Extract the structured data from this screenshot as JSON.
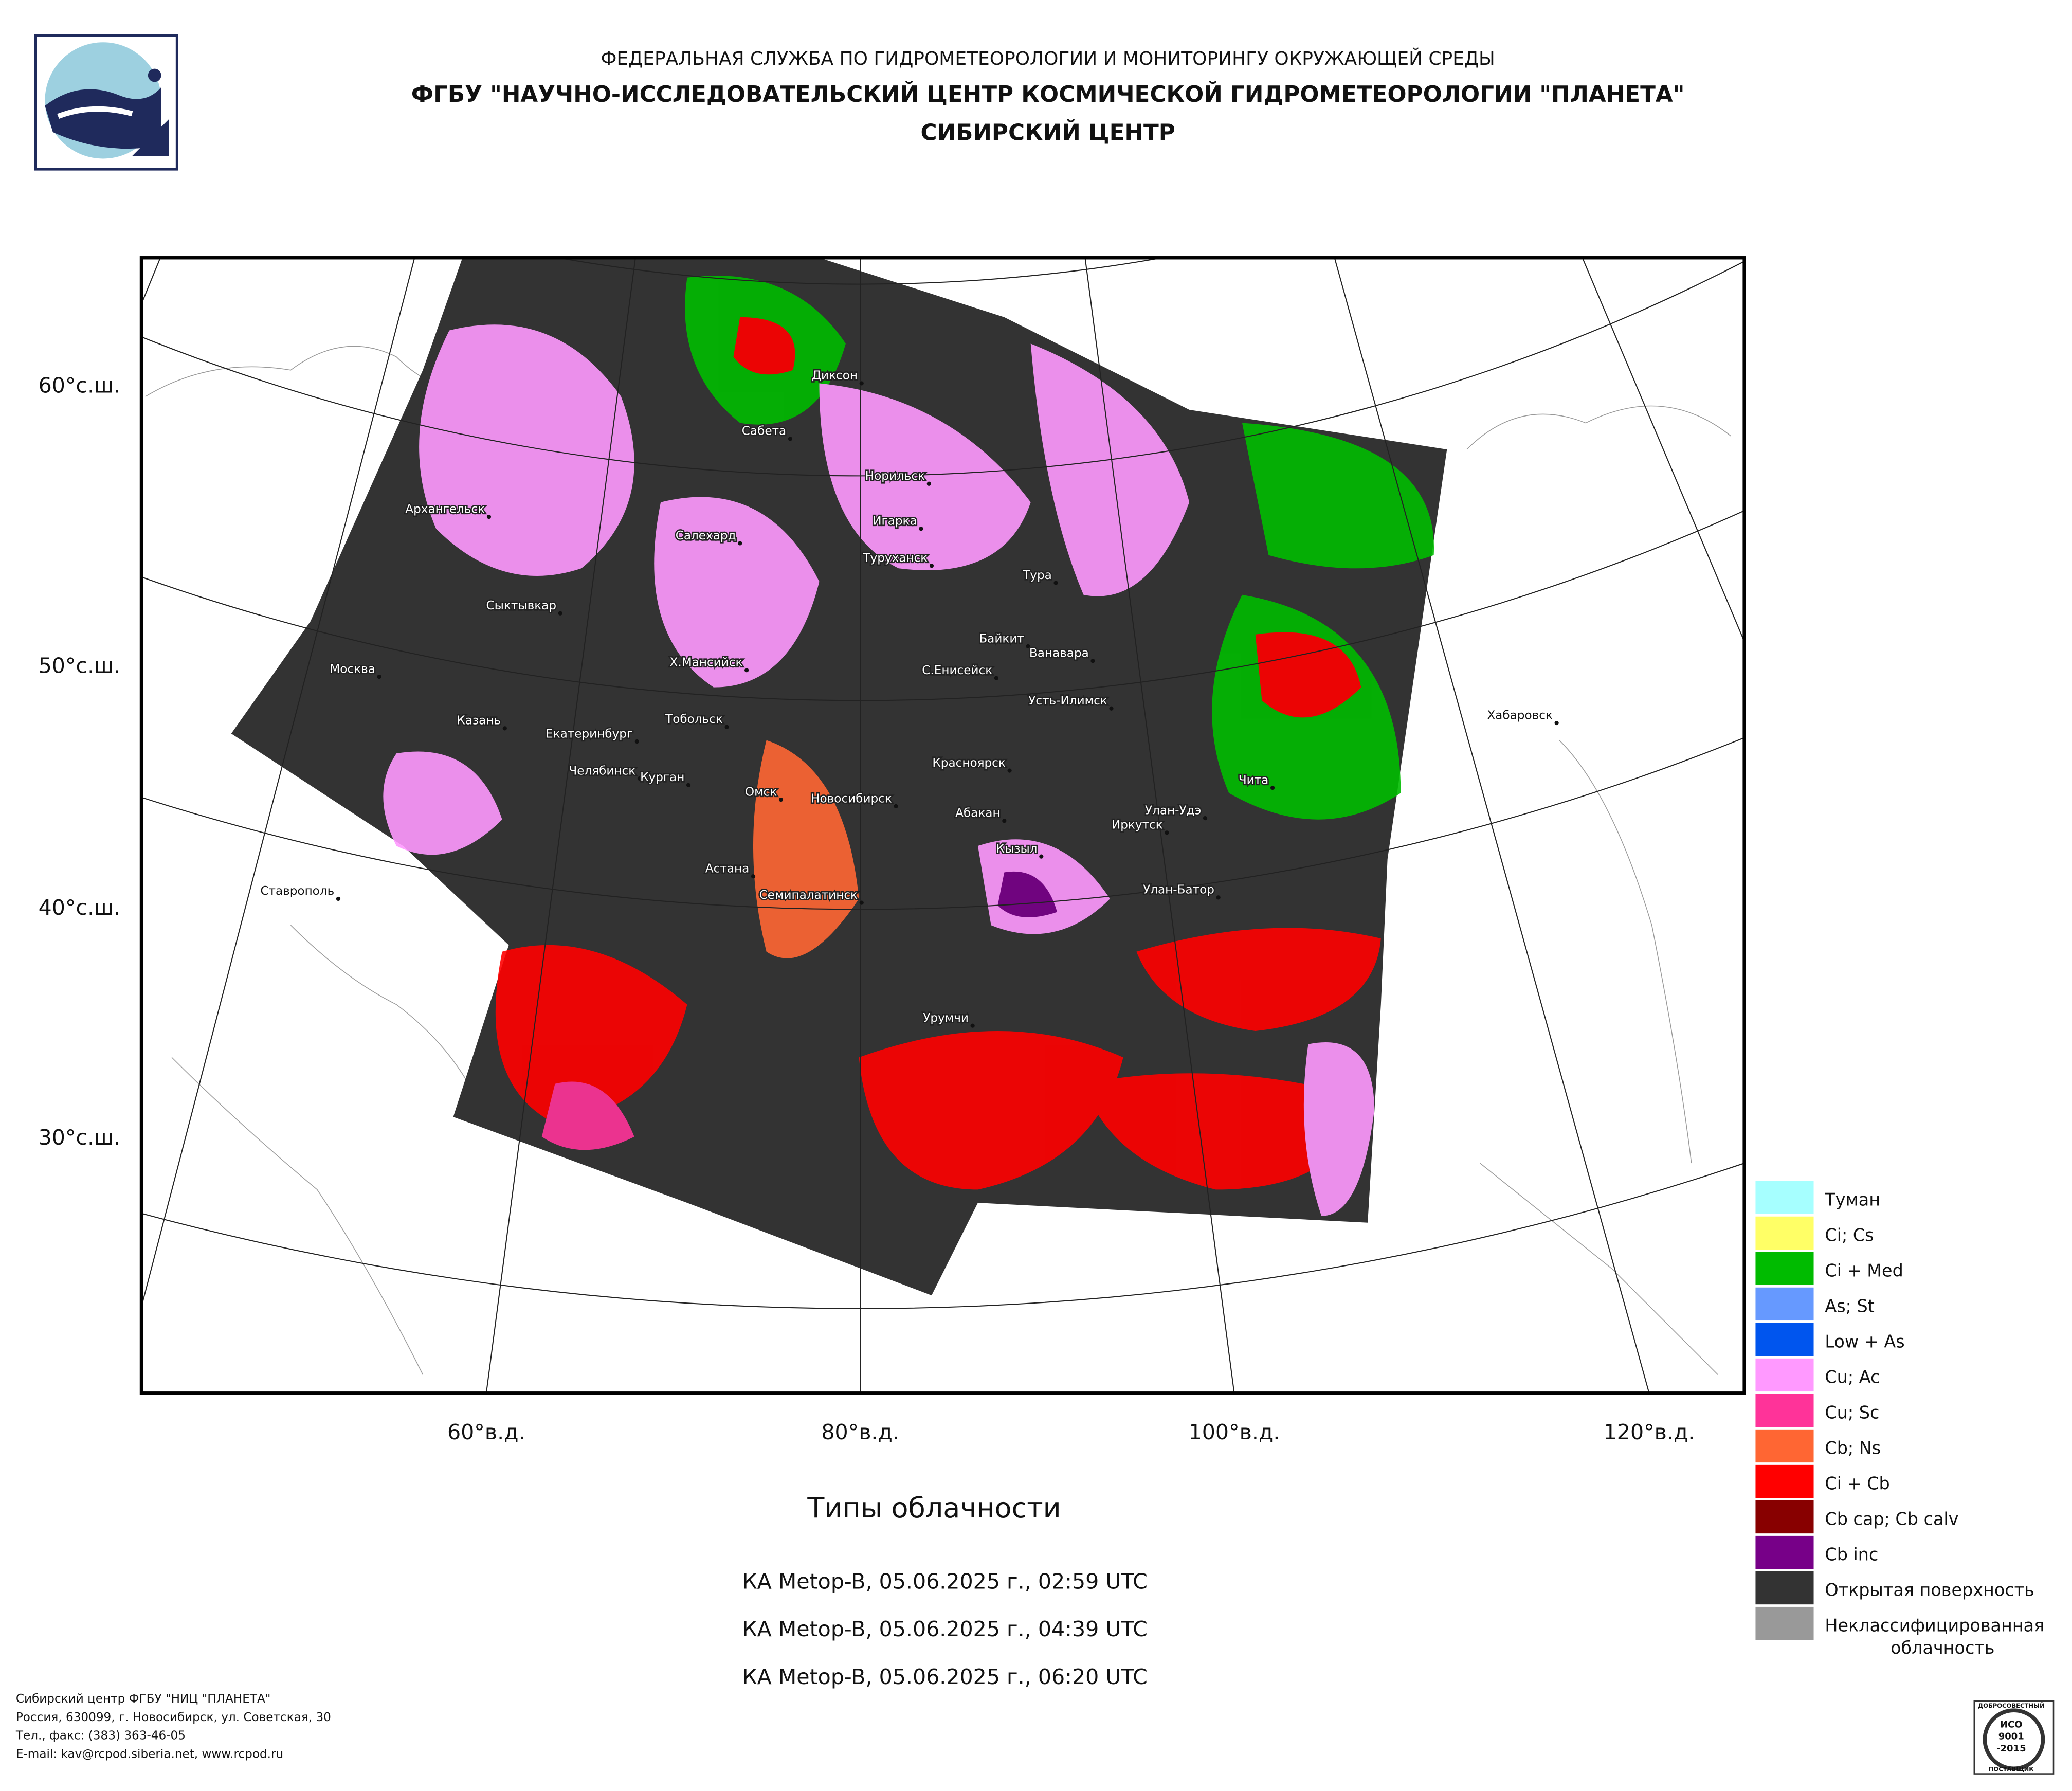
{
  "header": {
    "line1": "ФЕДЕРАЛЬНАЯ СЛУЖБА ПО ГИДРОМЕТЕОРОЛОГИИ И МОНИТОРИНГУ ОКРУЖАЮЩЕЙ СРЕДЫ",
    "line2": "ФГБУ \"НАУЧНО-ИССЛЕДОВАТЕЛЬСКИЙ ЦЕНТР КОСМИЧЕСКОЙ ГИДРОМЕТЕОРОЛОГИИ \"ПЛАНЕТА\"",
    "line3": "СИБИРСКИЙ ЦЕНТР"
  },
  "map": {
    "lat_labels": [
      "60°с.ш.",
      "50°с.ш.",
      "40°с.ш.",
      "30°с.ш."
    ],
    "lon_labels": [
      "60°в.д.",
      "80°в.д.",
      "100°в.д.",
      "120°в.д."
    ],
    "cities": [
      "Диксон",
      "Сабета",
      "Норильск",
      "Архангельск",
      "Игарка",
      "Салехард",
      "Туруханск",
      "Тура",
      "Сыктывкар",
      "Байкит",
      "Ванавара",
      "Москва",
      "Х.Мансийск",
      "С.Енисейск",
      "Хабаровск",
      "Усть-Илимск",
      "Казань",
      "Тобольск",
      "Екатеринбург",
      "Красноярск",
      "Чита",
      "Челябинск",
      "Курган",
      "Омск",
      "Новосибирск",
      "Улан-Удэ",
      "Абакан",
      "Иркутск",
      "Кызыл",
      "Астана",
      "Ставрополь",
      "Улан-Батор",
      "Семипалатинск",
      "Урумчи"
    ]
  },
  "legend": {
    "items": [
      {
        "label": "Туман",
        "color": "#a6ffff"
      },
      {
        "label": "Ci; Cs",
        "color": "#ffff66"
      },
      {
        "label": "Ci + Med",
        "color": "#00bb00"
      },
      {
        "label": "As; St",
        "color": "#6699ff"
      },
      {
        "label": "Low + As",
        "color": "#0055ee"
      },
      {
        "label": "Cu; Ac",
        "color": "#ff99ff"
      },
      {
        "label": "Cu; Sc",
        "color": "#ff3399"
      },
      {
        "label": "Cb; Ns",
        "color": "#ff6633"
      },
      {
        "label": "Ci + Cb",
        "color": "#ff0000"
      },
      {
        "label": "Cb cap; Cb calv",
        "color": "#880000"
      },
      {
        "label": "Cb inc",
        "color": "#770088"
      },
      {
        "label": "Открытая поверхность",
        "color": "#333333"
      },
      {
        "label": "Неклассифицированная облачность",
        "color": "#999999"
      }
    ]
  },
  "caption": {
    "title": "Типы облачности",
    "passes": [
      "КА Metop-B, 05.06.2025 г., 02:59 UTC",
      "КА Metop-B, 05.06.2025 г., 04:39 UTC",
      "КА Metop-B, 05.06.2025 г., 06:20 UTC"
    ]
  },
  "footer": {
    "lines": [
      "Сибирский центр ФГБУ \"НИЦ \"ПЛАНЕТА\"",
      "Россия, 630099, г. Новосибирск, ул. Советская, 30",
      "Тел., факс: (383) 363-46-05",
      "E-mail: kav@rcpod.siberia.net, www.rcpod.ru"
    ]
  },
  "badge": {
    "lines": [
      "ДОБРОСОВЕСТНЫЙ",
      "ИСО",
      "9001",
      "-2015",
      "ПОСТАВЩИК"
    ]
  }
}
